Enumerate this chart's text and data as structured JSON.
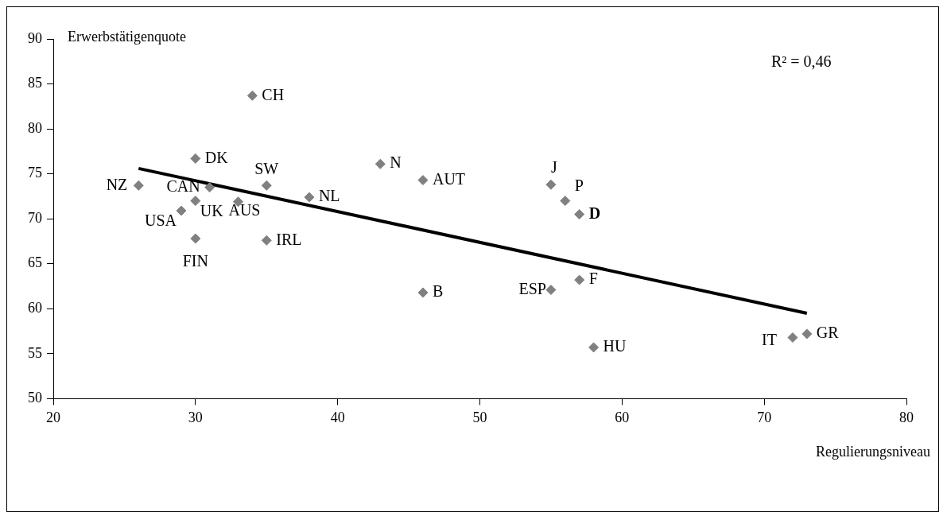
{
  "chart_data": {
    "type": "scatter",
    "xlabel": "Regulierungsniveau",
    "ylabel": "Erwerbstätigenquote",
    "xlim": [
      20,
      80
    ],
    "xticks": [
      20,
      30,
      40,
      50,
      60,
      70,
      80
    ],
    "ylim": [
      50,
      90
    ],
    "yticks": [
      50,
      55,
      60,
      65,
      70,
      75,
      80,
      85,
      90
    ],
    "grid": false,
    "legend": false,
    "series": [
      {
        "marker": "diamond",
        "color": "#808080",
        "x": [
          26,
          31,
          30,
          34,
          35,
          38,
          30,
          33,
          29,
          30,
          35,
          43,
          46,
          55,
          56,
          57,
          57,
          55,
          46,
          58,
          72,
          73
        ],
        "values": [
          73.7,
          73.5,
          76.7,
          83.7,
          73.7,
          72.4,
          72.0,
          71.9,
          70.9,
          67.8,
          67.6,
          76.1,
          74.3,
          73.8,
          72.0,
          70.5,
          63.2,
          62.1,
          61.8,
          55.7,
          56.8,
          57.2
        ]
      },
      {
        "type": "line",
        "marker": "none",
        "color": "#000000",
        "line_style": "solid",
        "x": [
          26,
          73
        ],
        "values": [
          75.6,
          59.5
        ]
      }
    ],
    "annotations": [
      {
        "text": "NZ",
        "x": 26,
        "y": 73.7
      },
      {
        "text": "CAN",
        "x": 31,
        "y": 73.5
      },
      {
        "text": "DK",
        "x": 30,
        "y": 76.7
      },
      {
        "text": "CH",
        "x": 34,
        "y": 83.7
      },
      {
        "text": "SW",
        "x": 35,
        "y": 73.7
      },
      {
        "text": "NL",
        "x": 38,
        "y": 72.4
      },
      {
        "text": "UK",
        "x": 30,
        "y": 72.0
      },
      {
        "text": "AUS",
        "x": 33,
        "y": 71.9
      },
      {
        "text": "USA",
        "x": 29,
        "y": 70.9
      },
      {
        "text": "FIN",
        "x": 30,
        "y": 67.8
      },
      {
        "text": "IRL",
        "x": 35,
        "y": 67.6
      },
      {
        "text": "N",
        "x": 43,
        "y": 76.1
      },
      {
        "text": "AUT",
        "x": 46,
        "y": 74.3
      },
      {
        "text": "J",
        "x": 55,
        "y": 73.8
      },
      {
        "text": "P",
        "x": 56,
        "y": 72.0
      },
      {
        "text": "D",
        "x": 57,
        "y": 70.5
      },
      {
        "text": "F",
        "x": 57,
        "y": 63.2
      },
      {
        "text": "ESP",
        "x": 55,
        "y": 62.1
      },
      {
        "text": "B",
        "x": 46,
        "y": 61.8
      },
      {
        "text": "HU",
        "x": 58,
        "y": 55.7
      },
      {
        "text": "IT",
        "x": 72,
        "y": 56.8
      },
      {
        "text": "GR",
        "x": 73,
        "y": 57.2
      },
      "R² = 0,46"
    ]
  }
}
